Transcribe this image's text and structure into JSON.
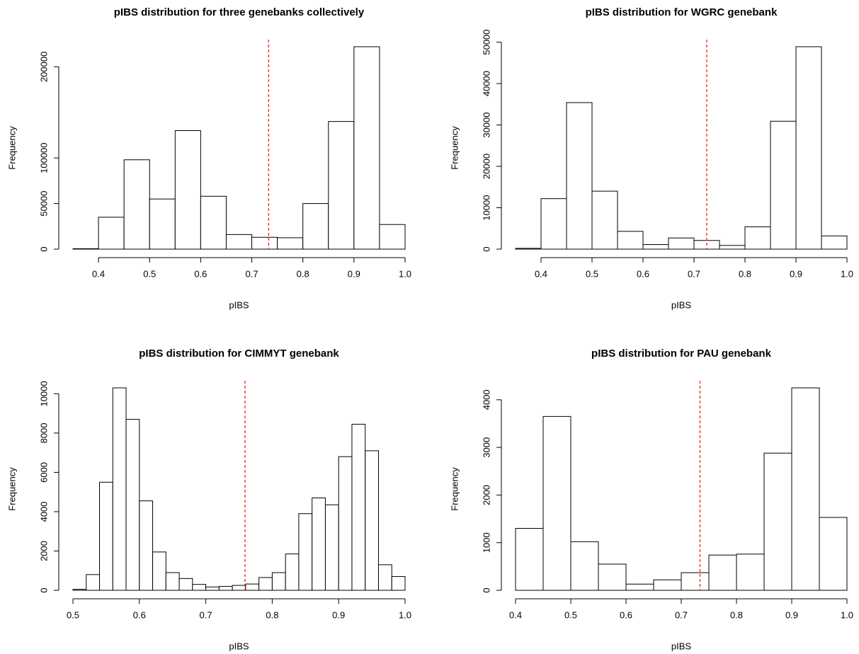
{
  "chart_data": [
    {
      "type": "histogram",
      "title": "pIBS distribution for three genebanks collectively",
      "xlabel": "pIBS",
      "ylabel": "Frequency",
      "bins": [
        0.35,
        0.4,
        0.45,
        0.5,
        0.55,
        0.6,
        0.65,
        0.7,
        0.75,
        0.8,
        0.85,
        0.9,
        0.95,
        1.0
      ],
      "values": [
        500,
        35000,
        98000,
        55000,
        130000,
        58000,
        16000,
        13000,
        12500,
        50000,
        140000,
        222000,
        27000
      ],
      "color": "#ffffff",
      "xlim": [
        0.35,
        1.0
      ],
      "ylim": [
        0,
        222000
      ],
      "xticks": [
        0.4,
        0.5,
        0.6,
        0.7,
        0.8,
        0.9,
        {
          "value": 1,
          "label": "1.0"
        }
      ],
      "yticks": [
        0,
        50000,
        100000,
        200000
      ],
      "vline": 0.733,
      "vline_color": "#e8251f"
    },
    {
      "type": "histogram",
      "title": "pIBS distribution for WGRC genebank",
      "xlabel": "pIBS",
      "ylabel": "Frequency",
      "bins": [
        0.35,
        0.4,
        0.45,
        0.5,
        0.55,
        0.6,
        0.65,
        0.7,
        0.75,
        0.8,
        0.85,
        0.9,
        0.95,
        1.0
      ],
      "values": [
        200,
        12200,
        35400,
        14000,
        4300,
        1100,
        2700,
        2100,
        900,
        5400,
        30900,
        48900,
        3200
      ],
      "color": "#ffffff",
      "xlim": [
        0.35,
        1.0
      ],
      "ylim": [
        0,
        48900
      ],
      "xticks": [
        0.4,
        0.5,
        0.6,
        0.7,
        0.8,
        0.9,
        {
          "value": 1,
          "label": "1.0"
        }
      ],
      "yticks": [
        0,
        10000,
        20000,
        30000,
        40000,
        50000
      ],
      "vline": 0.725,
      "vline_color": "#e8251f"
    },
    {
      "type": "histogram",
      "title": "pIBS distribution for CIMMYT genebank",
      "xlabel": "pIBS",
      "ylabel": "Frequency",
      "bins": [
        0.5,
        0.52,
        0.54,
        0.56,
        0.58,
        0.6,
        0.62,
        0.64,
        0.66,
        0.68,
        0.7,
        0.72,
        0.74,
        0.76,
        0.78,
        0.8,
        0.82,
        0.84,
        0.86,
        0.88,
        0.9,
        0.92,
        0.94,
        0.96,
        0.98,
        1.0
      ],
      "values": [
        50,
        800,
        5500,
        10300,
        8700,
        4550,
        1950,
        900,
        600,
        300,
        170,
        200,
        250,
        320,
        650,
        900,
        1850,
        3900,
        4700,
        4350,
        6800,
        8450,
        7100,
        1300,
        700
      ],
      "color": "#ffffff",
      "xlim": [
        0.5,
        1.0
      ],
      "ylim": [
        0,
        10300
      ],
      "xticks": [
        0.5,
        0.6,
        0.7,
        0.8,
        0.9,
        {
          "value": 1,
          "label": "1.0"
        }
      ],
      "yticks": [
        0,
        2000,
        4000,
        6000,
        8000,
        10000
      ],
      "vline": 0.759,
      "vline_color": "#e8251f"
    },
    {
      "type": "histogram",
      "title": "pIBS distribution for PAU genebank",
      "xlabel": "pIBS",
      "ylabel": "Frequency",
      "bins": [
        0.4,
        0.45,
        0.5,
        0.55,
        0.6,
        0.65,
        0.7,
        0.75,
        0.8,
        0.85,
        0.9,
        0.95,
        1.0
      ],
      "values": [
        1300,
        3650,
        1020,
        550,
        130,
        220,
        370,
        740,
        760,
        2880,
        4250,
        1530
      ],
      "color": "#ffffff",
      "xlim": [
        0.4,
        1.0
      ],
      "ylim": [
        0,
        4250
      ],
      "xticks": [
        0.4,
        0.5,
        0.6,
        0.7,
        0.8,
        0.9,
        {
          "value": 1,
          "label": "1.0"
        }
      ],
      "yticks": [
        0,
        1000,
        2000,
        3000,
        4000
      ],
      "vline": 0.734,
      "vline_color": "#e8251f"
    }
  ]
}
